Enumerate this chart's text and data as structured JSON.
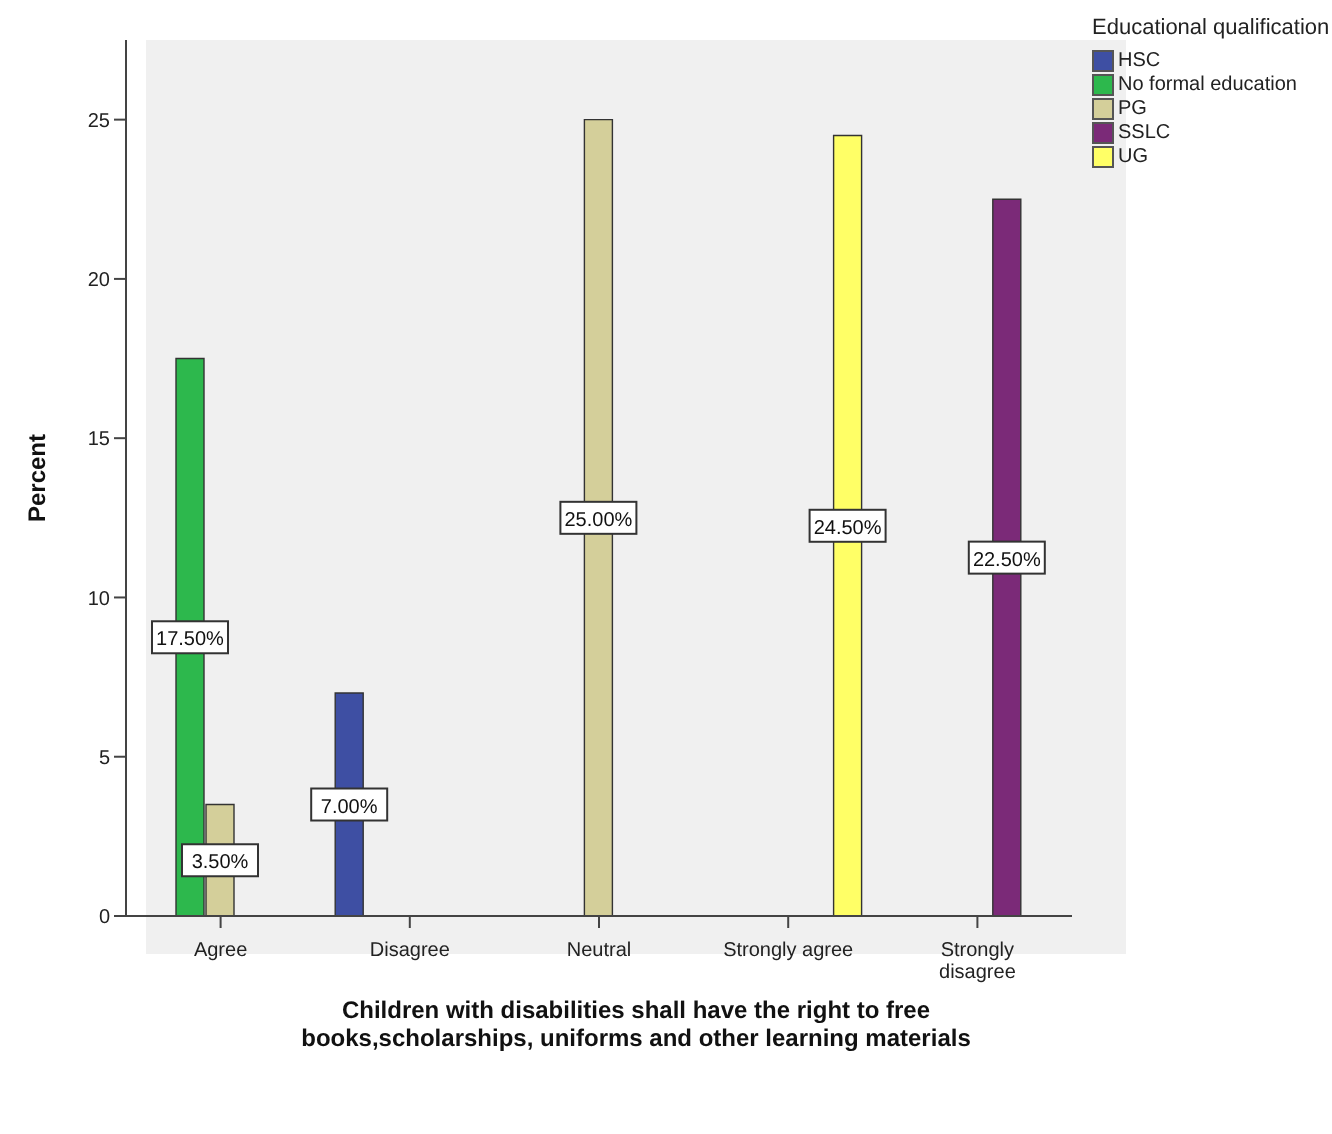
{
  "chart_data": {
    "type": "bar",
    "xlabel": "Children with disabilities shall have the right to free books,scholarships, uniforms and other learning materials",
    "ylabel": "Percent",
    "legend_title": "Educational qualification",
    "categories": [
      "Agree",
      "Disagree",
      "Neutral",
      "Strongly agree",
      "Strongly disagree"
    ],
    "series": [
      {
        "name": "HSC",
        "color": "#3e4fa3",
        "values": [
          null,
          7,
          null,
          null,
          null
        ],
        "value_labels": [
          null,
          "7.00%",
          null,
          null,
          null
        ]
      },
      {
        "name": "No formal education",
        "color": "#2db84d",
        "values": [
          17.5,
          null,
          null,
          null,
          null
        ],
        "value_labels": [
          "17.50%",
          null,
          null,
          null,
          null
        ]
      },
      {
        "name": "PG",
        "color": "#d4cf9a",
        "values": [
          3.5,
          null,
          25,
          null,
          null
        ],
        "value_labels": [
          "3.50%",
          null,
          "25.00%",
          null,
          null
        ]
      },
      {
        "name": "SSLC",
        "color": "#7b2a78",
        "values": [
          null,
          null,
          null,
          null,
          22.5
        ],
        "value_labels": [
          null,
          null,
          null,
          null,
          "22.50%"
        ]
      },
      {
        "name": "UG",
        "color": "#ffff66",
        "values": [
          null,
          null,
          null,
          24.5,
          null
        ],
        "value_labels": [
          null,
          null,
          null,
          "24.50%",
          null
        ]
      }
    ],
    "ylim": [
      0,
      27.5
    ],
    "yticks": [
      0,
      5,
      10,
      15,
      20,
      25
    ],
    "grid": false,
    "legend": "top right"
  }
}
